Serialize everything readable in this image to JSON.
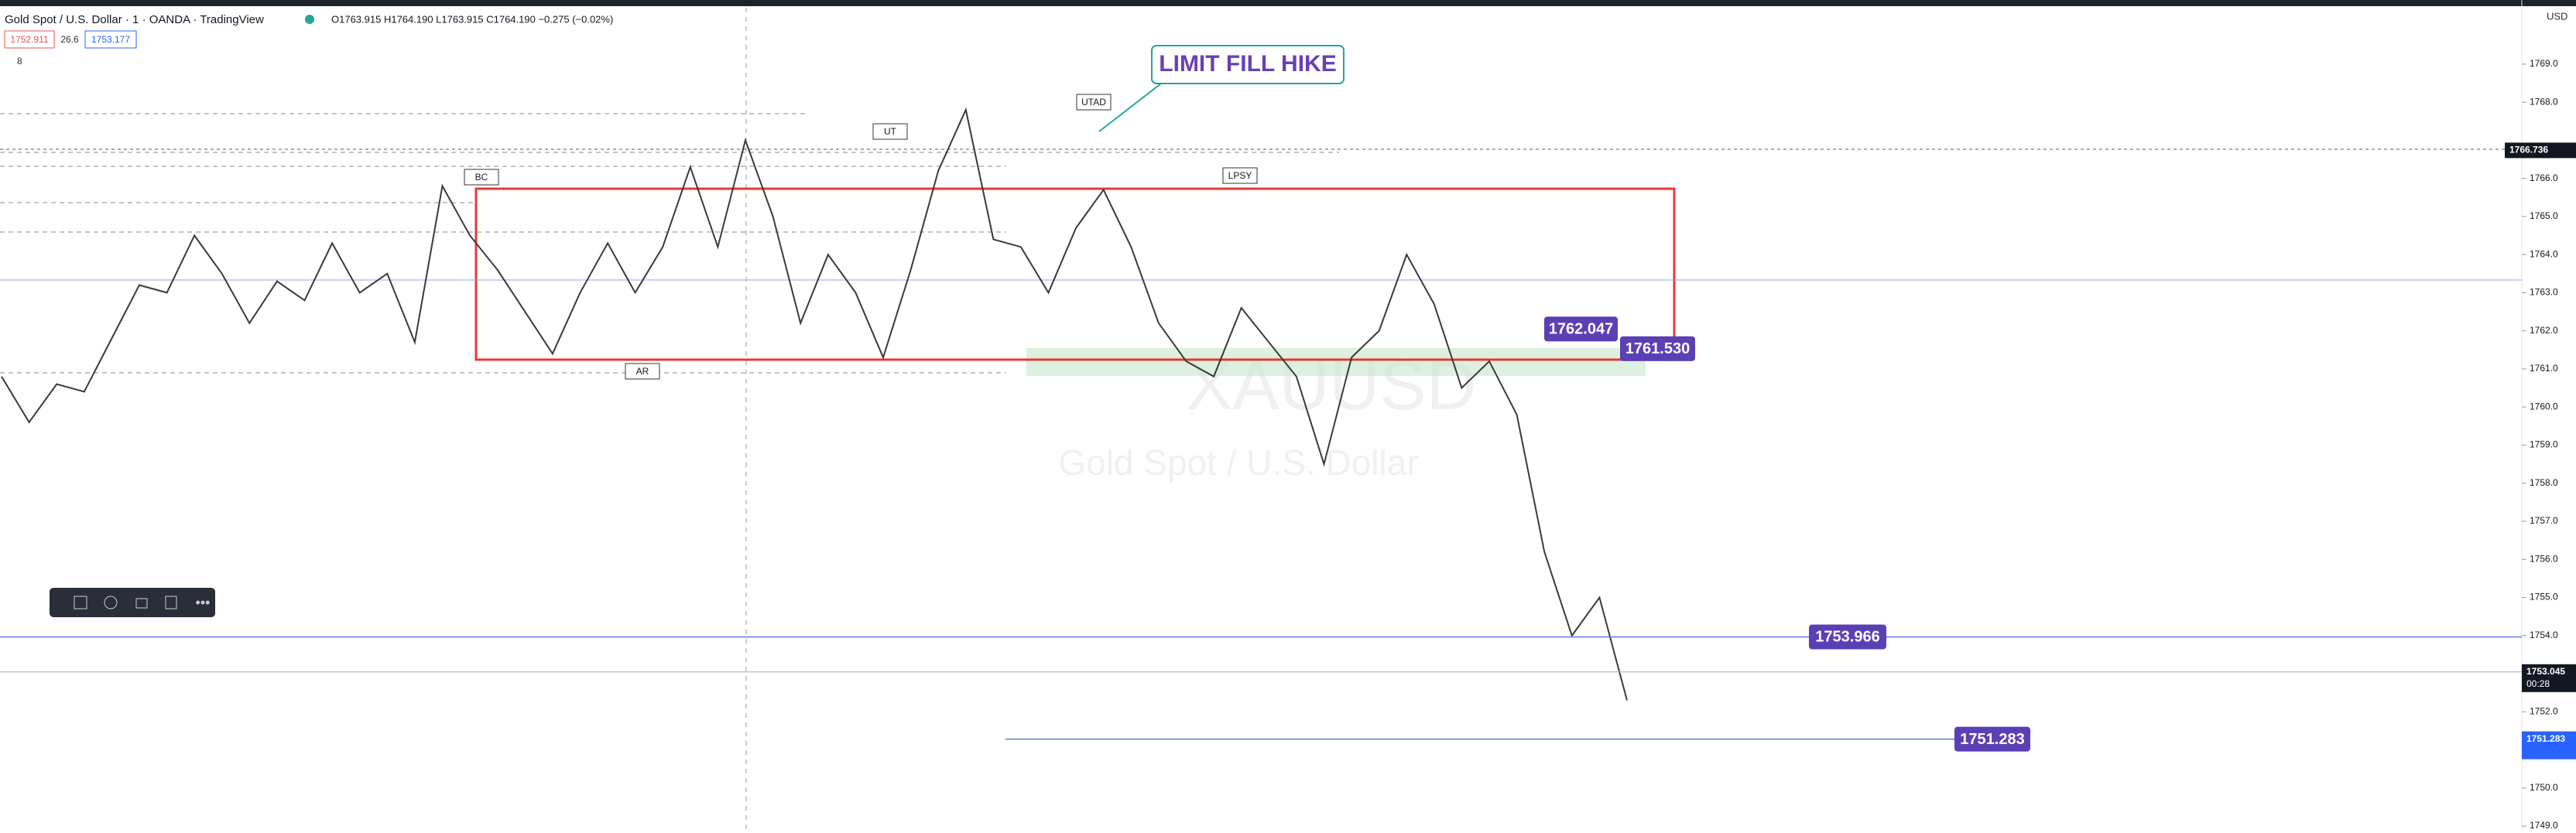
{
  "header": {
    "title": "Gold Spot / U.S. Dollar · 1 · OANDA · TradingView",
    "ohlc": "O1763.915 H1764.190 L1763.915 C1764.190 −0.275 (−0.02%)",
    "bid": "1752.911",
    "spread": "26.6",
    "ask": "1753.177",
    "indicators": "8",
    "currency": "USD"
  },
  "watermark": {
    "symbol": "XAUUSD",
    "name": "Gold Spot / U.S. Dollar"
  },
  "callout": "LIMIT FILL HIKE",
  "chart_data": {
    "type": "line",
    "color": "#3a3a3a",
    "values": [
      1760.8,
      1759.6,
      1760.6,
      1760.4,
      1761.8,
      1763.2,
      1763.0,
      1764.5,
      1763.5,
      1762.2,
      1763.3,
      1762.8,
      1764.3,
      1763.0,
      1763.5,
      1761.7,
      1765.8,
      1764.5,
      1763.6,
      1762.5,
      1761.4,
      1763.0,
      1764.3,
      1763.0,
      1764.2,
      1766.3,
      1764.2,
      1767.0,
      1765.0,
      1762.2,
      1764.0,
      1763.0,
      1761.3,
      1763.6,
      1766.2,
      1767.8,
      1764.4,
      1764.2,
      1763.0,
      1764.7,
      1765.7,
      1764.2,
      1762.2,
      1761.2,
      1760.8,
      1762.6,
      1761.7,
      1760.8,
      1758.5,
      1761.3,
      1762.0,
      1764.0,
      1762.7,
      1760.5,
      1761.2,
      1759.8,
      1756.2,
      1754.0,
      1755.0,
      1752.3
    ],
    "ylim": [
      1748.92,
      1769.83
    ],
    "yticks": [
      {
        "value": 1749,
        "label": "1749.0"
      },
      {
        "value": 1750,
        "label": "1750.0"
      },
      {
        "value": 1752,
        "label": "1752.0"
      },
      {
        "value": 1754,
        "label": "1754.0"
      },
      {
        "value": 1755,
        "label": "1755.0"
      },
      {
        "value": 1756,
        "label": "1756.0"
      },
      {
        "value": 1757,
        "label": "1757.0"
      },
      {
        "value": 1758,
        "label": "1758.0"
      },
      {
        "value": 1759,
        "label": "1759.0"
      },
      {
        "value": 1760,
        "label": "1760.0"
      },
      {
        "value": 1761,
        "label": "1761.0"
      },
      {
        "value": 1762,
        "label": "1762.0"
      },
      {
        "value": 1763,
        "label": "1763.0"
      },
      {
        "value": 1764,
        "label": "1764.0"
      },
      {
        "value": 1765,
        "label": "1765.0"
      },
      {
        "value": 1766,
        "label": "1766.0"
      },
      {
        "value": 1768,
        "label": "1768.0"
      },
      {
        "value": 1769,
        "label": "1769.0"
      }
    ],
    "annotations": [
      "BC",
      "UT",
      "UTAD",
      "LPSY",
      "AR"
    ],
    "levels": [
      {
        "value": 1762.047,
        "label": "1762.047"
      },
      {
        "value": 1761.53,
        "label": "1761.530"
      },
      {
        "value": 1753.966,
        "label": "1753.966"
      },
      {
        "value": 1751.283,
        "label": "1751.283"
      }
    ],
    "axis_labels": [
      {
        "value": 1766.736,
        "label": "1766.736"
      },
      {
        "value": 1753.045,
        "label": "1753.045"
      },
      {
        "value": 1751.283,
        "label": "1751.283"
      }
    ],
    "countdown": "00:28"
  }
}
